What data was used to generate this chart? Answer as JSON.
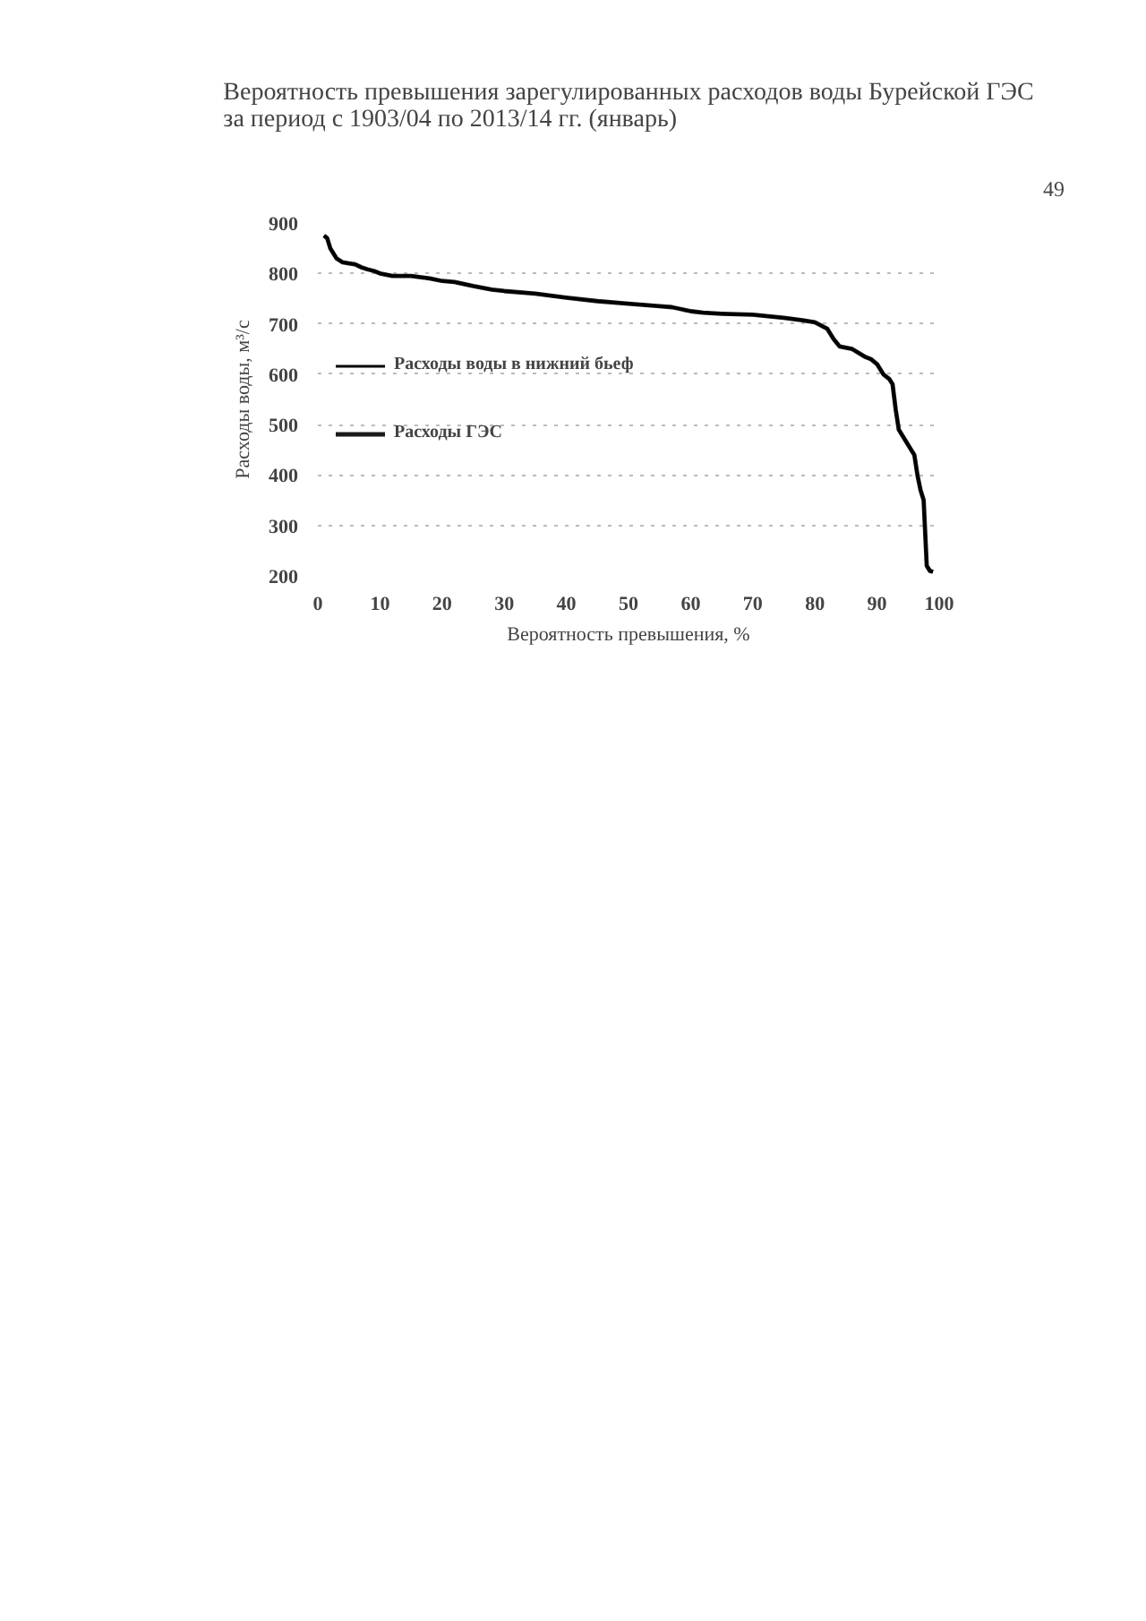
{
  "chart_data": {
    "type": "line",
    "title": "Вероятность превышения зарегулированных расходов воды Бурейской ГЭС\nза период с 1903/04 по 2013/14 гг. (январь)",
    "xlabel": "Вероятность превышения, %",
    "ylabel": "Расходы воды, м³/с",
    "annotations": [
      "49"
    ],
    "x": [
      1,
      1.5,
      2,
      3,
      4,
      5,
      6,
      7,
      8,
      9,
      10,
      12,
      15,
      18,
      20,
      22,
      25,
      28,
      30,
      35,
      40,
      45,
      50,
      55,
      57,
      60,
      62,
      65,
      70,
      75,
      78,
      80,
      82,
      83,
      84,
      86,
      88,
      89,
      90,
      91,
      92,
      92.5,
      93,
      93.5,
      95,
      96,
      96.5,
      97,
      97.5,
      98,
      98.5,
      99
    ],
    "series": [
      {
        "name": "Расходы воды в нижний бьеф",
        "color": "#000000",
        "values": [
          875,
          870,
          850,
          830,
          822,
          820,
          818,
          812,
          808,
          805,
          800,
          795,
          795,
          790,
          785,
          783,
          775,
          768,
          765,
          760,
          752,
          745,
          740,
          735,
          733,
          725,
          722,
          720,
          718,
          712,
          707,
          703,
          690,
          670,
          655,
          650,
          635,
          630,
          620,
          600,
          590,
          580,
          530,
          490,
          460,
          440,
          400,
          370,
          350,
          220,
          210,
          208
        ]
      },
      {
        "name": "Расходы ГЭС",
        "color": "#1a1a1a",
        "values": [
          875,
          870,
          850,
          830,
          822,
          820,
          818,
          812,
          808,
          805,
          800,
          795,
          795,
          790,
          785,
          783,
          775,
          768,
          765,
          760,
          752,
          745,
          740,
          735,
          733,
          725,
          722,
          720,
          718,
          712,
          707,
          703,
          690,
          670,
          655,
          650,
          635,
          630,
          620,
          600,
          590,
          580,
          530,
          490,
          460,
          440,
          400,
          370,
          350,
          220,
          210,
          208
        ]
      }
    ],
    "xlim": [
      0,
      100
    ],
    "xticks": [
      0,
      10,
      20,
      30,
      40,
      50,
      60,
      70,
      80,
      90,
      100
    ],
    "ylim": [
      200,
      900
    ],
    "yticks": [
      200,
      300,
      400,
      500,
      600,
      700,
      800,
      900
    ],
    "grid": "y",
    "legend": "left",
    "marker": "none",
    "line_style": "solid"
  }
}
